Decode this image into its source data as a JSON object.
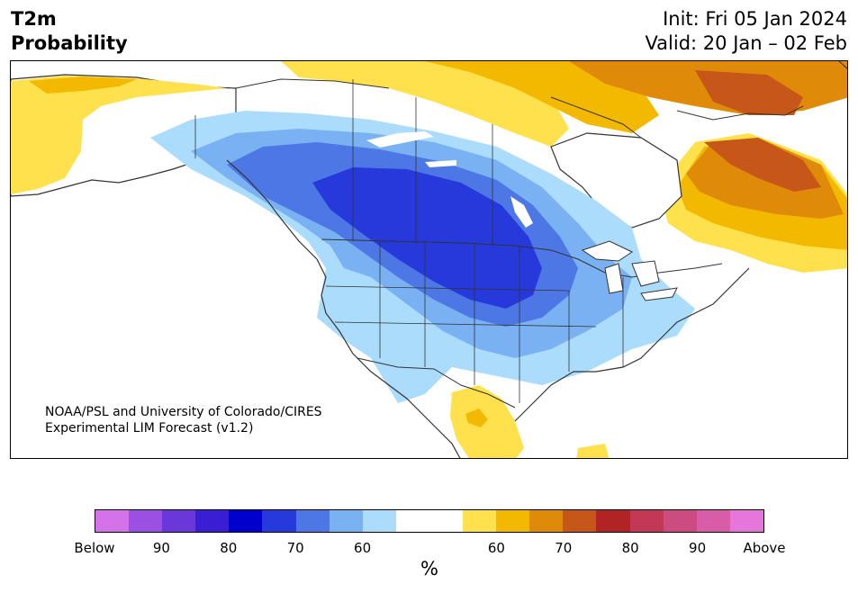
{
  "header": {
    "title_line1": "T2m",
    "title_line2": "Probability",
    "init": "Init: Fri 05 Jan 2024",
    "valid": "Valid: 20 Jan – 02 Feb"
  },
  "credit": {
    "line1": "NOAA/PSL and University of Colorado/CIRES",
    "line2": "Experimental LIM Forecast (v1.2)"
  },
  "legend": {
    "unit": "%",
    "colors": [
      "#d473e9",
      "#9a50e2",
      "#6a37d9",
      "#3a1ed3",
      "#0000cc",
      "#2639db",
      "#4e77e6",
      "#79b1f2",
      "#acdcfc",
      "#ffffff",
      "#ffffff",
      "#ffe14d",
      "#f3b800",
      "#e08a0a",
      "#c65718",
      "#b22424",
      "#c33854",
      "#cc4c7f",
      "#d95ca8",
      "#e676d9"
    ],
    "tick_labels": [
      "Below",
      "90",
      "80",
      "70",
      "60",
      "60",
      "70",
      "80",
      "90",
      "Above"
    ]
  },
  "map": {
    "colors": {
      "blue_light": "#acdcfc",
      "blue_mid": "#79b1f2",
      "blue": "#4e77e6",
      "blue_dark": "#2639db",
      "yellow": "#ffe14d",
      "gold": "#f3b800",
      "orange": "#e08a0a",
      "dark_orange": "#c65718",
      "border": "#333333"
    }
  }
}
